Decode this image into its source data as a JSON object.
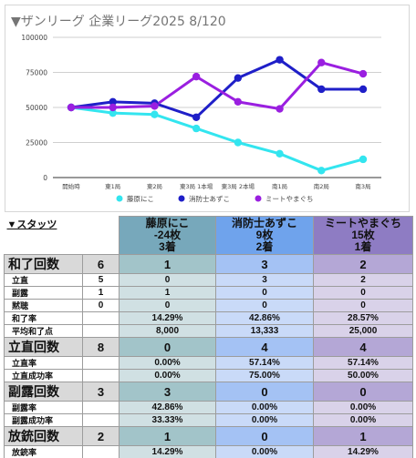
{
  "chart": {
    "title": "▼ザンリーグ 企業リーグ2025  8/120"
  },
  "chart_data": {
    "type": "line",
    "title": "▼ザンリーグ 企業リーグ2025  8/120",
    "categories": [
      "開始時",
      "東1局",
      "東2局",
      "東3局 1本場",
      "東3局 2本場",
      "南1局",
      "南2局",
      "南3局"
    ],
    "ylim": [
      0,
      100000
    ],
    "yticks": [
      0,
      25000,
      50000,
      75000,
      100000
    ],
    "grid": true,
    "legend_position": "bottom",
    "series": [
      {
        "name": "藤原にこ",
        "color": "#33e5ef",
        "values": [
          50000,
          46000,
          45000,
          35000,
          25000,
          17000,
          5000,
          13000
        ]
      },
      {
        "name": "消防士あずこ",
        "color": "#1f1fc8",
        "values": [
          50000,
          54000,
          53000,
          43000,
          71000,
          84000,
          63000,
          63000
        ]
      },
      {
        "name": "ミートやまぐち",
        "color": "#9a1fe0",
        "values": [
          50000,
          50000,
          51000,
          72000,
          54000,
          49000,
          82000,
          74000
        ]
      }
    ]
  },
  "stats": {
    "header_label": "▼スタッツ",
    "players": [
      {
        "name": "藤原にこ",
        "score": "-24枚",
        "place": "3着",
        "color": "#77a8bb"
      },
      {
        "name": "消防士あずこ",
        "score": "9枚",
        "place": "2着",
        "color": "#6fa3ec"
      },
      {
        "name": "ミートやまぐち",
        "score": "15枚",
        "place": "1着",
        "color": "#8e7cc3"
      }
    ],
    "sections": [
      {
        "title": "和了回数",
        "total": "6",
        "values": [
          "1",
          "3",
          "2"
        ],
        "rows": [
          {
            "label": "立直",
            "count": "5",
            "values": [
              "0",
              "3",
              "2"
            ]
          },
          {
            "label": "副露",
            "count": "1",
            "values": [
              "1",
              "0",
              "0"
            ]
          },
          {
            "label": "黙聴",
            "count": "0",
            "values": [
              "0",
              "0",
              "0"
            ]
          },
          {
            "label": "和了率",
            "count": "",
            "values": [
              "14.29%",
              "42.86%",
              "28.57%"
            ]
          },
          {
            "label": "平均和了点",
            "count": "",
            "values": [
              "8,000",
              "13,333",
              "25,000"
            ]
          }
        ]
      },
      {
        "title": "立直回数",
        "total": "8",
        "values": [
          "0",
          "4",
          "4"
        ],
        "rows": [
          {
            "label": "立直率",
            "count": "",
            "values": [
              "0.00%",
              "57.14%",
              "57.14%"
            ]
          },
          {
            "label": "立直成功率",
            "count": "",
            "values": [
              "0.00%",
              "75.00%",
              "50.00%"
            ]
          }
        ]
      },
      {
        "title": "副露回数",
        "total": "3",
        "values": [
          "3",
          "0",
          "0"
        ],
        "rows": [
          {
            "label": "副露率",
            "count": "",
            "values": [
              "42.86%",
              "0.00%",
              "0.00%"
            ]
          },
          {
            "label": "副露成功率",
            "count": "",
            "values": [
              "33.33%",
              "0.00%",
              "0.00%"
            ]
          }
        ]
      },
      {
        "title": "放銃回数",
        "total": "2",
        "values": [
          "1",
          "0",
          "1"
        ],
        "rows": [
          {
            "label": "放銃率",
            "count": "",
            "values": [
              "14.29%",
              "0.00%",
              "14.29%"
            ]
          },
          {
            "label": "平均放銃点",
            "count": "",
            "values": [
              "4,000",
              "0",
              "8,000"
            ]
          }
        ]
      }
    ],
    "colors": {
      "section_label_bg": "#d9d9d9",
      "section_value_bg": [
        "#a2c4c9",
        "#a4c2f4",
        "#b4a7d6"
      ],
      "row_value_bg": [
        "#d0e0e3",
        "#c9daf8",
        "#d9d2e9"
      ]
    }
  }
}
